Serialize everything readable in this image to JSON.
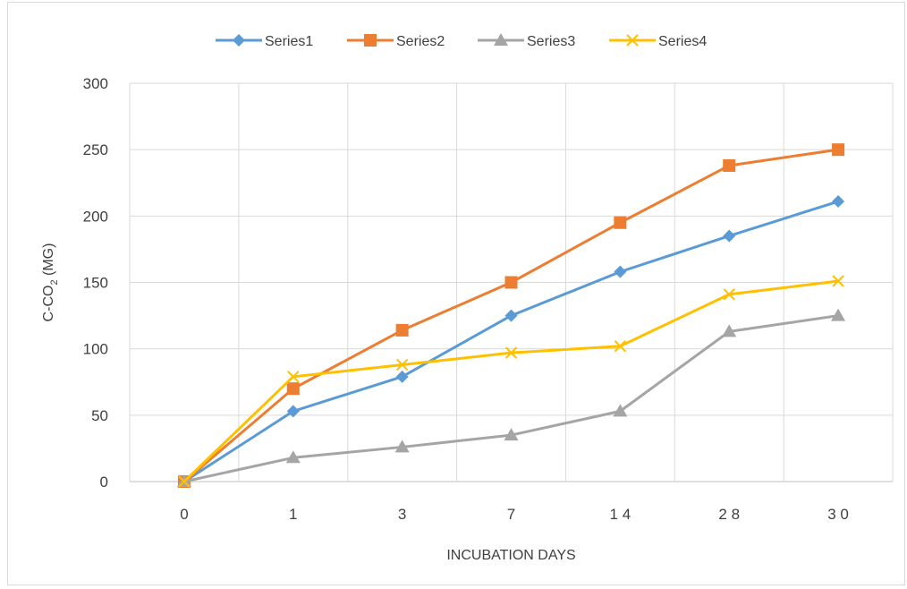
{
  "chart_data": {
    "type": "line",
    "categories": [
      "0",
      "1",
      "3",
      "7",
      "14",
      "28",
      "30"
    ],
    "category_labels": [
      "0",
      "1",
      "3",
      "7",
      "1 4",
      "2 8",
      "3 0"
    ],
    "xlabel": "INCUBATION  DAYS",
    "ylabel": {
      "prefix": "C-CO",
      "subscript": "2",
      "suffix": " (MG)"
    },
    "ylim": [
      0,
      300
    ],
    "yticks": [
      0,
      50,
      100,
      150,
      200,
      250,
      300
    ],
    "grid": true,
    "legend_position": "top",
    "series": [
      {
        "name": "Series1",
        "color": "#5b9bd5",
        "marker": "diamond",
        "values": [
          0,
          53,
          79,
          125,
          158,
          185,
          211
        ]
      },
      {
        "name": "Series2",
        "color": "#ed7d31",
        "marker": "square",
        "values": [
          0,
          70,
          114,
          150,
          195,
          238,
          250
        ]
      },
      {
        "name": "Series3",
        "color": "#a5a5a5",
        "marker": "triangle",
        "values": [
          0,
          18,
          26,
          35,
          53,
          113,
          125
        ]
      },
      {
        "name": "Series4",
        "color": "#ffc000",
        "marker": "x",
        "values": [
          0,
          79,
          88,
          97,
          102,
          141,
          151
        ]
      }
    ]
  }
}
